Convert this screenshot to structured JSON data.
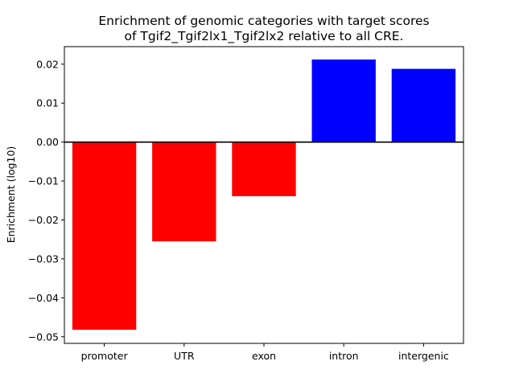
{
  "chart_data": {
    "type": "bar",
    "title": "Enrichment of genomic categories with target scores",
    "subtitle": "of Tgif2_Tgif2lx1_Tgif2lx2 relative to all CRE.",
    "xlabel": "",
    "ylabel": "Enrichment (log10)",
    "categories": [
      "promoter",
      "UTR",
      "exon",
      "intron",
      "intergenic"
    ],
    "values": [
      -0.0482,
      -0.0255,
      -0.0139,
      0.0212,
      0.0188
    ],
    "colors": [
      "#ff0000",
      "#ff0000",
      "#ff0000",
      "#0000ff",
      "#0000ff"
    ],
    "ylim": [
      -0.0517,
      0.0245
    ],
    "yticks": [
      -0.05,
      -0.04,
      -0.03,
      -0.02,
      -0.01,
      0.0,
      0.01,
      0.02
    ],
    "ytick_labels": [
      "−0.05",
      "−0.04",
      "−0.03",
      "−0.02",
      "−0.01",
      "0.00",
      "0.01",
      "0.02"
    ],
    "grid": false,
    "legend": "none",
    "zero_line": true
  }
}
